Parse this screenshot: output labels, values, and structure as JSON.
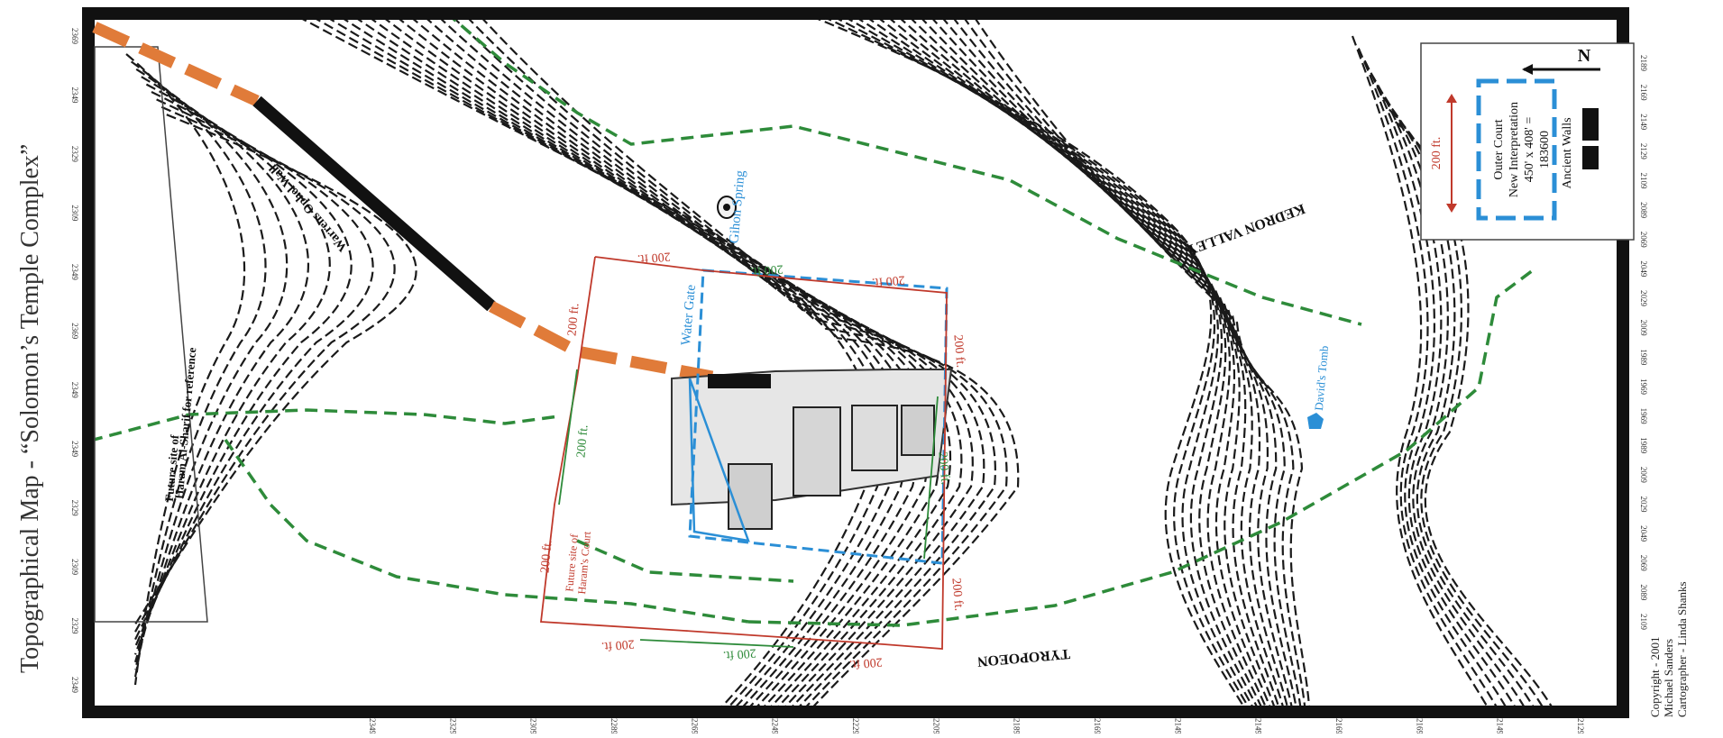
{
  "title": "Topographical Map - “Solomon’s Temple Complex”",
  "copyright": {
    "line1": "Copyright - 2001",
    "line2": "Michael Sanders",
    "line3": "Cartographer - Linda Shanks"
  },
  "labels": {
    "warrens_wall": "Warrens Ophel Wall",
    "water_gate": "Water Gate",
    "gihon_spring": "Gihon Spring",
    "kedron_valley": "KEDRON VALLEY",
    "tyropoeon": "TYROPOEON",
    "davids_tomb": "David's Tomb",
    "future_site_haram_l1": "Future site of",
    "future_site_haram_l2": "Haram Al-Sharif for reference",
    "future_site_court_l1": "Future site of",
    "future_site_court_l2": "Haram's Court"
  },
  "dimensions": {
    "red_top_left": "200 ft.",
    "red_top_right": "200 ft.",
    "blue_top": "200 ft.",
    "red_left_upper": "200 ft.",
    "red_right_upper": "200 ft.",
    "green_left": "200 ft.",
    "green_right": "200 ft.",
    "red_left_lower": "200 ft.",
    "red_right_lower": "200 ft.",
    "red_bottom_left": "200 ft.",
    "green_bottom": "200 ft.",
    "red_bottom_right": "200 ft."
  },
  "legend": {
    "outer_court": "Outer Court",
    "new_interp": "New Interpretation",
    "dims": "450' x 408' =",
    "area": "183600",
    "ancient_walls": "Ancient Walls",
    "scale": "200 ft.",
    "north": "N"
  },
  "elevations_left": [
    "2369",
    "2349",
    "2329",
    "2309",
    "2349",
    "2369",
    "2349",
    "2349",
    "2329",
    "2309",
    "2329",
    "2349"
  ],
  "elevations_right": [
    "2189",
    "2169",
    "2149",
    "2129",
    "2109",
    "2089",
    "2069",
    "2049",
    "2029",
    "2009",
    "1989",
    "1969",
    "1969",
    "1989",
    "2009",
    "2029",
    "2049",
    "2069",
    "2089",
    "2109"
  ],
  "elevations_bottom": [
    "2349",
    "2329",
    "2309",
    "2289",
    "2269",
    "2249",
    "2229",
    "2209",
    "2189",
    "2169",
    "2149",
    "2149",
    "2169",
    "2169",
    "2149",
    "2129"
  ],
  "colors": {
    "frame": "#111111",
    "contour": "#1a1a1a",
    "orange_wall": "#e07b39",
    "green_route": "#2e8b3a",
    "blue_outline": "#2b8fd6",
    "red_dims": "#c0392b"
  }
}
